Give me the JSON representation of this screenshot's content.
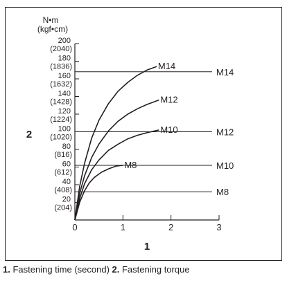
{
  "chart_data": {
    "type": "line",
    "title": "",
    "y_unit_primary": "N•m",
    "y_unit_secondary": "(kgf•cm)",
    "xlabel": "1",
    "ylabel": "2",
    "xlim": [
      0,
      3
    ],
    "ylim": [
      0,
      200
    ],
    "x_ticks": [
      {
        "value": 0,
        "label": "0"
      },
      {
        "value": 1,
        "label": "1"
      },
      {
        "value": 2,
        "label": "2"
      },
      {
        "value": 3,
        "label": "3"
      }
    ],
    "y_ticks": [
      {
        "value": 20,
        "label": "20",
        "sub": "(204)"
      },
      {
        "value": 40,
        "label": "40",
        "sub": "(408)"
      },
      {
        "value": 60,
        "label": "60",
        "sub": "(612)"
      },
      {
        "value": 80,
        "label": "80",
        "sub": "(816)"
      },
      {
        "value": 100,
        "label": "100",
        "sub": "(1020)"
      },
      {
        "value": 120,
        "label": "120",
        "sub": "(1224)"
      },
      {
        "value": 140,
        "label": "140",
        "sub": "(1428)"
      },
      {
        "value": 160,
        "label": "160",
        "sub": "(1632)"
      },
      {
        "value": 180,
        "label": "180",
        "sub": "(1836)"
      },
      {
        "value": 200,
        "label": "200",
        "sub": "(2040)"
      }
    ],
    "series": [
      {
        "name": "M14",
        "asymptote": 168,
        "x": [
          0,
          0.1,
          0.2,
          0.35,
          0.5,
          0.7,
          0.9,
          1.1,
          1.3,
          1.5,
          1.7
        ],
        "y": [
          0,
          38,
          64,
          93,
          113,
          132,
          146,
          156,
          164,
          170,
          174
        ]
      },
      {
        "name": "M12",
        "asymptote": 100,
        "x": [
          0,
          0.1,
          0.2,
          0.35,
          0.5,
          0.7,
          0.9,
          1.1,
          1.3,
          1.5,
          1.75
        ],
        "y": [
          0,
          30,
          50,
          71,
          86,
          101,
          112,
          120,
          126,
          131,
          136
        ]
      },
      {
        "name": "M10",
        "asymptote": 62,
        "x": [
          0,
          0.1,
          0.2,
          0.35,
          0.5,
          0.7,
          0.9,
          1.1,
          1.3,
          1.5,
          1.75
        ],
        "y": [
          0,
          24,
          41,
          57,
          68,
          79,
          86,
          92,
          96,
          99,
          102
        ]
      },
      {
        "name": "M8",
        "asymptote": 32,
        "x": [
          0,
          0.1,
          0.2,
          0.3,
          0.4,
          0.55,
          0.7,
          0.85,
          1.0
        ],
        "y": [
          0,
          20,
          33,
          42,
          48,
          54,
          58,
          61,
          62
        ]
      }
    ],
    "grid": false,
    "legend": "right"
  },
  "caption": {
    "item1_num": "1.",
    "item1_text": " Fastening time (second) ",
    "item2_num": "2.",
    "item2_text": " Fastening torque"
  }
}
